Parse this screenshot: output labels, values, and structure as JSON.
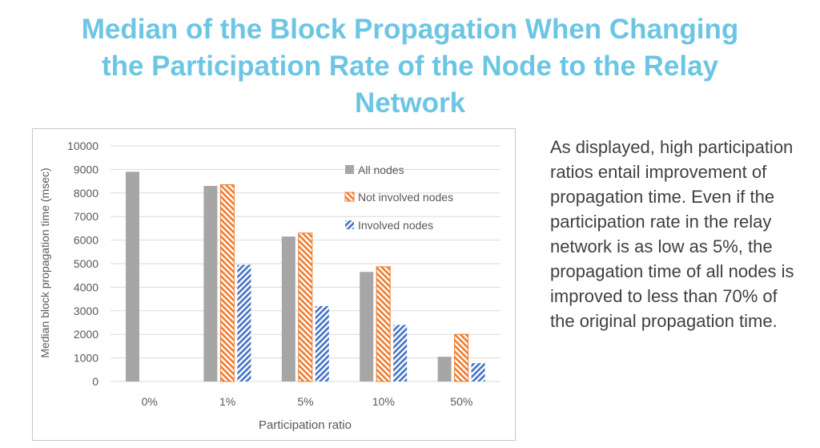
{
  "slide": {
    "title_lines": [
      "Median of the Block Propagation When Changing",
      "the Participation Rate of the Node to the Relay",
      "Network"
    ],
    "description": "As displayed, high participation ratios entail improvement of propagation time. Even if the participation rate in the relay network is as low as 5%, the propagation time of all nodes is improved to less than 70% of the original propagation time.",
    "colors": {
      "title": "#6cc6e3",
      "all": "#a6a6a6",
      "not_involved": "#ed7d31",
      "involved": "#4472c4"
    }
  },
  "chart_data": {
    "type": "bar",
    "title": "",
    "xlabel": "Participation ratio",
    "ylabel": "Median block propagation time (msec)",
    "ylim": [
      0,
      10000
    ],
    "yticks": [
      "0",
      "1000",
      "2000",
      "3000",
      "4000",
      "5000",
      "6000",
      "7000",
      "8000",
      "9000",
      "10000"
    ],
    "categories": [
      "0%",
      "1%",
      "5%",
      "10%",
      "50%"
    ],
    "series": [
      {
        "name": "All nodes",
        "values": [
          8900,
          8300,
          6150,
          4650,
          1050
        ]
      },
      {
        "name": "Not involved nodes",
        "values": [
          null,
          8350,
          6300,
          4870,
          2000
        ]
      },
      {
        "name": "Involved nodes",
        "values": [
          null,
          4950,
          3200,
          2400,
          780
        ]
      }
    ],
    "legend_position": "top-right",
    "grid": true
  }
}
